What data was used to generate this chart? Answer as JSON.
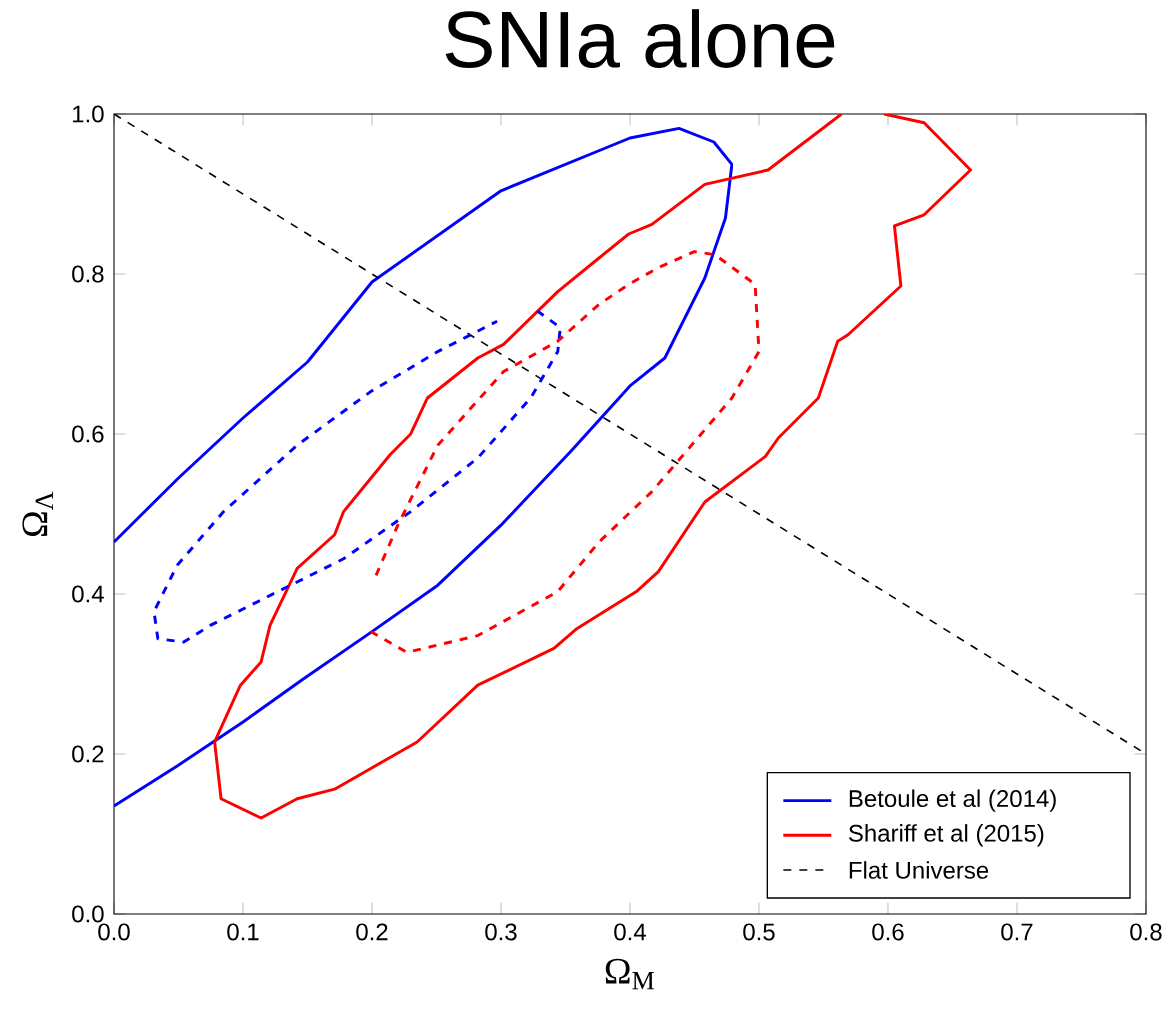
{
  "chart_data": {
    "type": "line",
    "title": "SNIa alone",
    "xlabel": "Ω$_{M}$",
    "ylabel": "Ω$_{Λ}$",
    "xlim": [
      0,
      0.8
    ],
    "ylim": [
      0,
      1.0
    ],
    "xticks": [
      {
        "value": 0,
        "label": "0.0"
      },
      {
        "value": 0.1,
        "label": "0.1"
      },
      {
        "value": 0.2,
        "label": "0.2"
      },
      {
        "value": 0.3,
        "label": "0.3"
      },
      {
        "value": 0.4,
        "label": "0.4"
      },
      {
        "value": 0.5,
        "label": "0.5"
      },
      {
        "value": 0.6,
        "label": "0.6"
      },
      {
        "value": 0.7,
        "label": "0.7"
      },
      {
        "value": 0.8,
        "label": "0.8"
      }
    ],
    "yticks": [
      {
        "value": 0,
        "label": "0.0"
      },
      {
        "value": 0.2,
        "label": "0.2"
      },
      {
        "value": 0.4,
        "label": "0.4"
      },
      {
        "value": 0.6,
        "label": "0.6"
      },
      {
        "value": 0.8,
        "label": "0.8"
      },
      {
        "value": 1.0,
        "label": "1.0"
      }
    ],
    "legend": "bottom right",
    "series": [
      {
        "name": "Betoule et al (2014)",
        "color": "#0000ff",
        "line_style": "solid",
        "x": [
          0,
          0.05,
          0.1,
          0.15,
          0.2,
          0.3,
          0.4,
          0.438,
          0.465,
          0.479,
          0.474,
          0.458,
          0.427,
          0.4,
          0.354,
          0.3,
          0.251,
          0.2,
          0.147,
          0.1,
          0.049,
          0
        ],
        "values": [
          0.465,
          0.545,
          0.62,
          0.69,
          0.79,
          0.904,
          0.97,
          0.982,
          0.965,
          0.937,
          0.87,
          0.795,
          0.695,
          0.66,
          0.578,
          0.486,
          0.411,
          0.353,
          0.294,
          0.24,
          0.185,
          0.135
        ]
      },
      {
        "name": "Shariff et al (2015)",
        "color": "#ff0000",
        "line_style": "solid",
        "x": [
          0.078,
          0.083,
          0.114,
          0.142,
          0.171,
          0.235,
          0.282,
          0.341,
          0.359,
          0.405,
          0.422,
          0.458,
          0.505,
          0.515,
          0.546,
          0.561,
          0.569,
          0.61,
          0.605,
          0.628,
          0.664,
          0.628,
          0.597,
          null,
          0.564,
          0.507,
          0.458,
          0.417,
          0.399,
          0.376,
          0.344,
          0.302,
          0.282,
          0.243,
          0.23,
          0.214,
          0.178,
          0.171,
          0.142,
          0.121,
          0.114,
          0.098,
          0.078
        ],
        "values": [
          0.215,
          0.144,
          0.12,
          0.144,
          0.156,
          0.215,
          0.286,
          0.332,
          0.357,
          0.403,
          0.428,
          0.515,
          0.572,
          0.595,
          0.645,
          0.716,
          0.724,
          0.785,
          0.86,
          0.874,
          0.93,
          0.989,
          1.0,
          null,
          1.0,
          0.93,
          0.912,
          0.862,
          0.85,
          0.82,
          0.778,
          0.712,
          0.695,
          0.645,
          0.6,
          0.574,
          0.503,
          0.474,
          0.432,
          0.361,
          0.315,
          0.286,
          0.215
        ]
      },
      {
        "name": "Flat Universe",
        "color": "#000000",
        "line_style": "dashed",
        "x": [
          0,
          0.8
        ],
        "values": [
          1.0,
          0.2
        ]
      },
      {
        "color": "#0000ff",
        "line_style": "dashed",
        "x": [
          0.328,
          0.346,
          0.344,
          0.323,
          0.282,
          0.23,
          0.178,
          0.127,
          0.075,
          0.054,
          0.034,
          0.031,
          0.049,
          0.085,
          0.142,
          0.199,
          0.251,
          0.297
        ],
        "values": [
          0.754,
          0.733,
          0.703,
          0.645,
          0.57,
          0.503,
          0.444,
          0.403,
          0.361,
          0.34,
          0.344,
          0.378,
          0.436,
          0.503,
          0.586,
          0.653,
          0.703,
          0.741
        ]
      },
      {
        "color": "#ff0000",
        "line_style": "dashed",
        "x": [
          0.199,
          0.227,
          0.282,
          0.344,
          0.376,
          0.417,
          0.479,
          0.5,
          0.497,
          0.466,
          0.45,
          0.422,
          0.399,
          0.376,
          0.344,
          0.302,
          0.251,
          0.22,
          0.202
        ],
        "values": [
          0.353,
          0.327,
          0.348,
          0.403,
          0.465,
          0.528,
          0.645,
          0.703,
          0.787,
          0.824,
          0.828,
          0.808,
          0.787,
          0.762,
          0.716,
          0.678,
          0.586,
          0.486,
          0.419
        ]
      }
    ]
  }
}
